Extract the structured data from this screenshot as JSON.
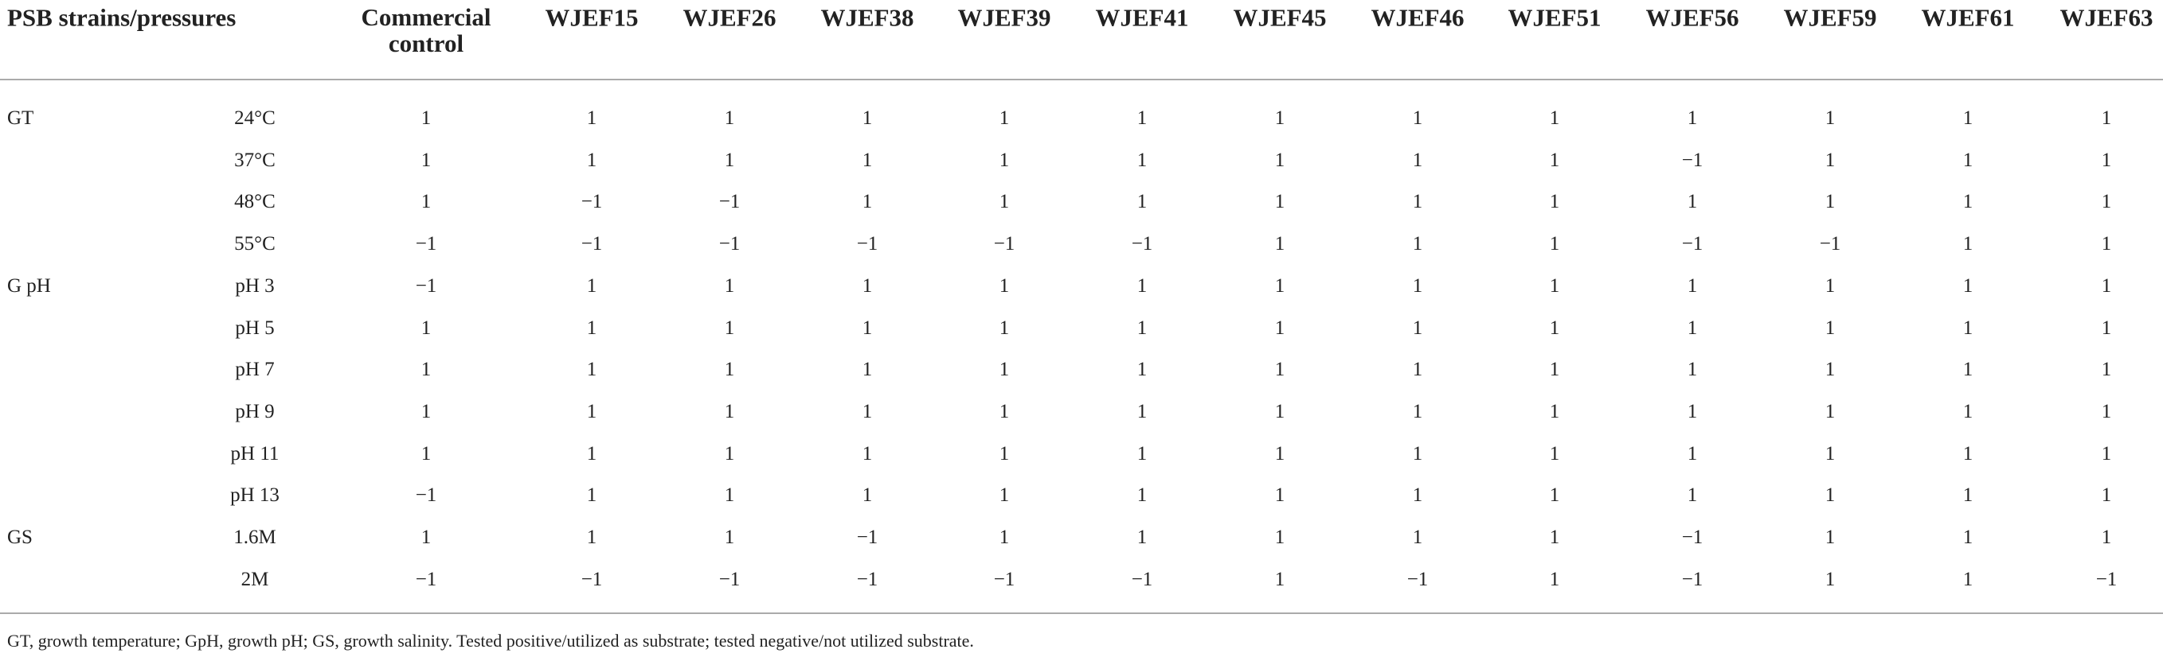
{
  "table": {
    "columns": [
      "PSB strains/pressures",
      "Commercial control",
      "WJEF15",
      "WJEF26",
      "WJEF38",
      "WJEF39",
      "WJEF41",
      "WJEF45",
      "WJEF46",
      "WJEF51",
      "WJEF56",
      "WJEF59",
      "WJEF61",
      "WJEF63"
    ],
    "groups": [
      {
        "label": "GT",
        "rows": [
          {
            "condition": "24°C",
            "values": [
              "1",
              "1",
              "1",
              "1",
              "1",
              "1",
              "1",
              "1",
              "1",
              "1",
              "1",
              "1",
              "1"
            ]
          },
          {
            "condition": "37°C",
            "values": [
              "1",
              "1",
              "1",
              "1",
              "1",
              "1",
              "1",
              "1",
              "1",
              "−1",
              "1",
              "1",
              "1"
            ]
          },
          {
            "condition": "48°C",
            "values": [
              "1",
              "−1",
              "−1",
              "1",
              "1",
              "1",
              "1",
              "1",
              "1",
              "1",
              "1",
              "1",
              "1"
            ]
          },
          {
            "condition": "55°C",
            "values": [
              "−1",
              "−1",
              "−1",
              "−1",
              "−1",
              "−1",
              "1",
              "1",
              "1",
              "−1",
              "−1",
              "1",
              "1"
            ]
          }
        ]
      },
      {
        "label": "G pH",
        "rows": [
          {
            "condition": "pH 3",
            "values": [
              "−1",
              "1",
              "1",
              "1",
              "1",
              "1",
              "1",
              "1",
              "1",
              "1",
              "1",
              "1",
              "1"
            ]
          },
          {
            "condition": "pH 5",
            "values": [
              "1",
              "1",
              "1",
              "1",
              "1",
              "1",
              "1",
              "1",
              "1",
              "1",
              "1",
              "1",
              "1"
            ]
          },
          {
            "condition": "pH 7",
            "values": [
              "1",
              "1",
              "1",
              "1",
              "1",
              "1",
              "1",
              "1",
              "1",
              "1",
              "1",
              "1",
              "1"
            ]
          },
          {
            "condition": "pH 9",
            "values": [
              "1",
              "1",
              "1",
              "1",
              "1",
              "1",
              "1",
              "1",
              "1",
              "1",
              "1",
              "1",
              "1"
            ]
          },
          {
            "condition": "pH 11",
            "values": [
              "1",
              "1",
              "1",
              "1",
              "1",
              "1",
              "1",
              "1",
              "1",
              "1",
              "1",
              "1",
              "1"
            ]
          },
          {
            "condition": "pH 13",
            "values": [
              "−1",
              "1",
              "1",
              "1",
              "1",
              "1",
              "1",
              "1",
              "1",
              "1",
              "1",
              "1",
              "1"
            ]
          }
        ]
      },
      {
        "label": "GS",
        "rows": [
          {
            "condition": "1.6M",
            "values": [
              "1",
              "1",
              "1",
              "−1",
              "1",
              "1",
              "1",
              "1",
              "1",
              "−1",
              "1",
              "1",
              "1"
            ]
          },
          {
            "condition": "2M",
            "values": [
              "−1",
              "−1",
              "−1",
              "−1",
              "−1",
              "−1",
              "1",
              "−1",
              "1",
              "−1",
              "1",
              "1",
              "−1"
            ]
          }
        ]
      }
    ]
  },
  "footnote": "GT, growth temperature; GpH, growth pH; GS, growth salinity. Tested positive/utilized as substrate; tested negative/not utilized substrate."
}
